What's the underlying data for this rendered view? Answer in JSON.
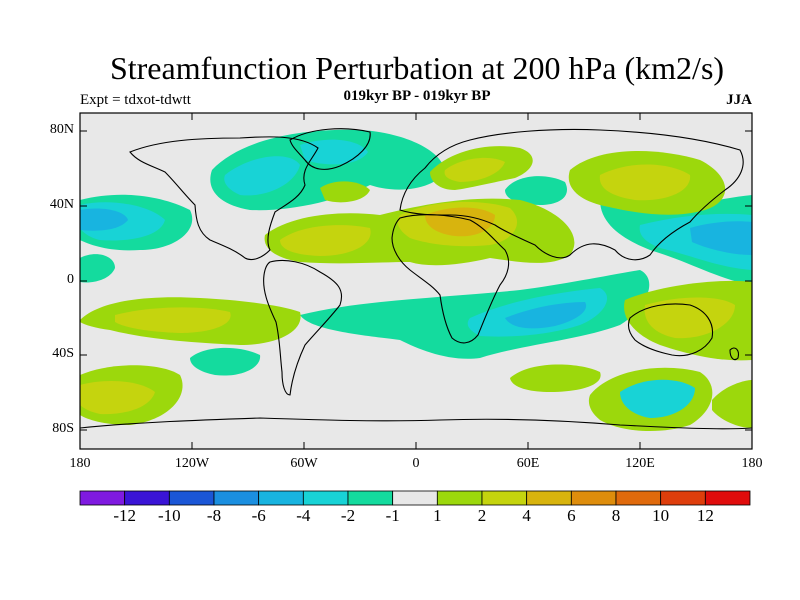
{
  "title": "Streamfunction Perturbation at 200 hPa (km2/s)",
  "subtitle": "019kyr BP - 019kyr BP",
  "left_label": "Expt = tdxot-tdwtt",
  "season": "JJA",
  "lat_ticks": [
    "80N",
    "40N",
    "0",
    "40S",
    "80S"
  ],
  "lon_ticks": [
    "180",
    "120W",
    "60W",
    "0",
    "60E",
    "120E",
    "180"
  ],
  "colorbar": {
    "labels": [
      "-12",
      "-10",
      "-8",
      "-6",
      "-4",
      "-2",
      "-1",
      "1",
      "2",
      "4",
      "6",
      "8",
      "10",
      "12"
    ],
    "colors": [
      "#7f1ae0",
      "#3a14d6",
      "#1b56d6",
      "#1b8fe0",
      "#18b4e0",
      "#18d3d6",
      "#14db9e",
      "#e8e8e8",
      "#9cd80c",
      "#c5d40e",
      "#d8b40e",
      "#de8d0c",
      "#e06a0c",
      "#de3e0c",
      "#e00c0c"
    ]
  }
}
